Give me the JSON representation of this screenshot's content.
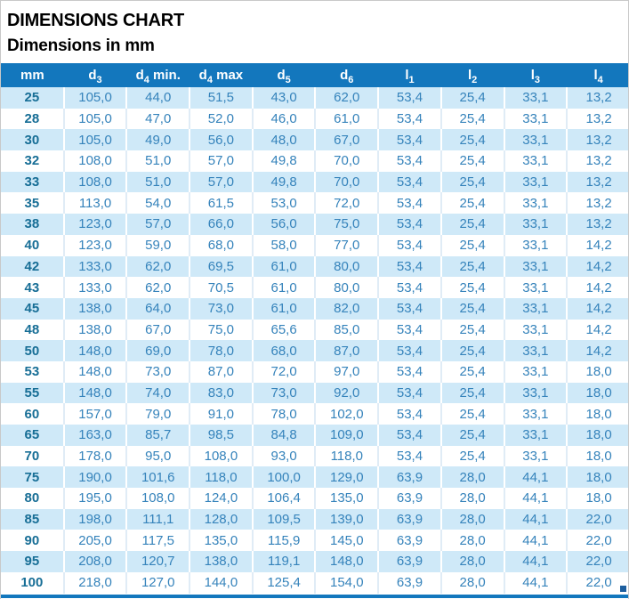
{
  "page": {
    "title": "DIMENSIONS CHART",
    "subtitle": "Dimensions in mm"
  },
  "colors": {
    "header_bg": "#1377bd",
    "row_alt_bg": "#cfe9f8",
    "value_text": "#3583bb",
    "mm_column_text": "#176e96",
    "bottom_bar": "#1377bd"
  },
  "chart_data": {
    "type": "table",
    "title": "DIMENSIONS CHART",
    "subtitle": "Dimensions in mm",
    "columns": [
      {
        "text": "mm"
      },
      {
        "base": "d",
        "sub": "3",
        "suffix": ""
      },
      {
        "base": "d",
        "sub": "4",
        "suffix": " min."
      },
      {
        "base": "d",
        "sub": "4",
        "suffix": " max"
      },
      {
        "base": "d",
        "sub": "5",
        "suffix": ""
      },
      {
        "base": "d",
        "sub": "6",
        "suffix": ""
      },
      {
        "base": "l",
        "sub": "1",
        "suffix": ""
      },
      {
        "base": "l",
        "sub": "2",
        "suffix": ""
      },
      {
        "base": "l",
        "sub": "3",
        "suffix": ""
      },
      {
        "base": "l",
        "sub": "4",
        "suffix": ""
      }
    ],
    "rows": [
      [
        "25",
        "105,0",
        "44,0",
        "51,5",
        "43,0",
        "62,0",
        "53,4",
        "25,4",
        "33,1",
        "13,2"
      ],
      [
        "28",
        "105,0",
        "47,0",
        "52,0",
        "46,0",
        "61,0",
        "53,4",
        "25,4",
        "33,1",
        "13,2"
      ],
      [
        "30",
        "105,0",
        "49,0",
        "56,0",
        "48,0",
        "67,0",
        "53,4",
        "25,4",
        "33,1",
        "13,2"
      ],
      [
        "32",
        "108,0",
        "51,0",
        "57,0",
        "49,8",
        "70,0",
        "53,4",
        "25,4",
        "33,1",
        "13,2"
      ],
      [
        "33",
        "108,0",
        "51,0",
        "57,0",
        "49,8",
        "70,0",
        "53,4",
        "25,4",
        "33,1",
        "13,2"
      ],
      [
        "35",
        "113,0",
        "54,0",
        "61,5",
        "53,0",
        "72,0",
        "53,4",
        "25,4",
        "33,1",
        "13,2"
      ],
      [
        "38",
        "123,0",
        "57,0",
        "66,0",
        "56,0",
        "75,0",
        "53,4",
        "25,4",
        "33,1",
        "13,2"
      ],
      [
        "40",
        "123,0",
        "59,0",
        "68,0",
        "58,0",
        "77,0",
        "53,4",
        "25,4",
        "33,1",
        "14,2"
      ],
      [
        "42",
        "133,0",
        "62,0",
        "69,5",
        "61,0",
        "80,0",
        "53,4",
        "25,4",
        "33,1",
        "14,2"
      ],
      [
        "43",
        "133,0",
        "62,0",
        "70,5",
        "61,0",
        "80,0",
        "53,4",
        "25,4",
        "33,1",
        "14,2"
      ],
      [
        "45",
        "138,0",
        "64,0",
        "73,0",
        "61,0",
        "82,0",
        "53,4",
        "25,4",
        "33,1",
        "14,2"
      ],
      [
        "48",
        "138,0",
        "67,0",
        "75,0",
        "65,6",
        "85,0",
        "53,4",
        "25,4",
        "33,1",
        "14,2"
      ],
      [
        "50",
        "148,0",
        "69,0",
        "78,0",
        "68,0",
        "87,0",
        "53,4",
        "25,4",
        "33,1",
        "14,2"
      ],
      [
        "53",
        "148,0",
        "73,0",
        "87,0",
        "72,0",
        "97,0",
        "53,4",
        "25,4",
        "33,1",
        "18,0"
      ],
      [
        "55",
        "148,0",
        "74,0",
        "83,0",
        "73,0",
        "92,0",
        "53,4",
        "25,4",
        "33,1",
        "18,0"
      ],
      [
        "60",
        "157,0",
        "79,0",
        "91,0",
        "78,0",
        "102,0",
        "53,4",
        "25,4",
        "33,1",
        "18,0"
      ],
      [
        "65",
        "163,0",
        "85,7",
        "98,5",
        "84,8",
        "109,0",
        "53,4",
        "25,4",
        "33,1",
        "18,0"
      ],
      [
        "70",
        "178,0",
        "95,0",
        "108,0",
        "93,0",
        "118,0",
        "53,4",
        "25,4",
        "33,1",
        "18,0"
      ],
      [
        "75",
        "190,0",
        "101,6",
        "118,0",
        "100,0",
        "129,0",
        "63,9",
        "28,0",
        "44,1",
        "18,0"
      ],
      [
        "80",
        "195,0",
        "108,0",
        "124,0",
        "106,4",
        "135,0",
        "63,9",
        "28,0",
        "44,1",
        "18,0"
      ],
      [
        "85",
        "198,0",
        "111,1",
        "128,0",
        "109,5",
        "139,0",
        "63,9",
        "28,0",
        "44,1",
        "22,0"
      ],
      [
        "90",
        "205,0",
        "117,5",
        "135,0",
        "115,9",
        "145,0",
        "63,9",
        "28,0",
        "44,1",
        "22,0"
      ],
      [
        "95",
        "208,0",
        "120,7",
        "138,0",
        "119,1",
        "148,0",
        "63,9",
        "28,0",
        "44,1",
        "22,0"
      ],
      [
        "100",
        "218,0",
        "127,0",
        "144,0",
        "125,4",
        "154,0",
        "63,9",
        "28,0",
        "44,1",
        "22,0"
      ]
    ]
  }
}
